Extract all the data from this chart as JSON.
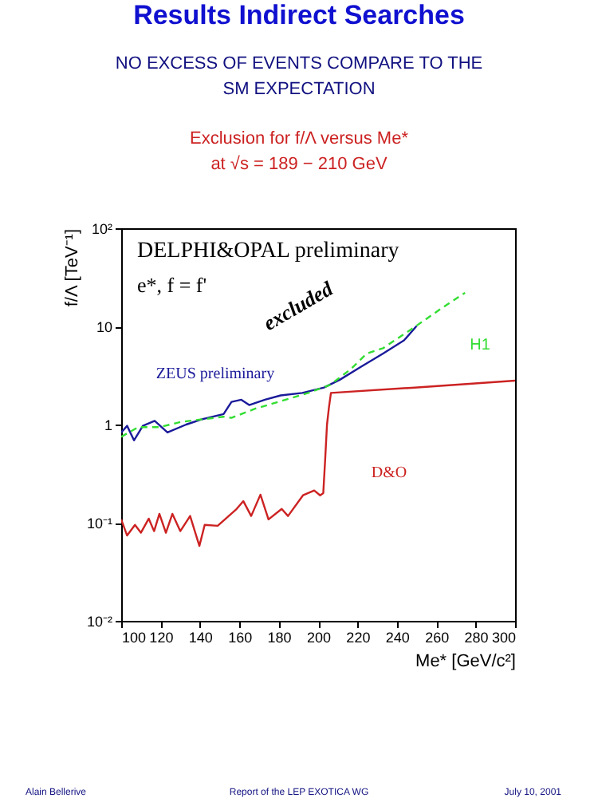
{
  "chart_data": {
    "type": "line",
    "title": "Results Indirect Searches",
    "subtitle": "NO EXCESS OF EVENTS COMPARE TO THE SM EXPECTATION",
    "xlabel": "Me* [GeV/c²]",
    "ylabel": "f/Λ [TeV⁻¹]",
    "xlim": [
      100,
      300
    ],
    "xticks": [
      100,
      120,
      140,
      160,
      180,
      200,
      220,
      240,
      260,
      280,
      300
    ],
    "ylim": [
      0.01,
      100
    ],
    "yticks": [
      {
        "value": 0.01,
        "label": "10⁻²"
      },
      {
        "value": 0.1,
        "label": "10⁻¹"
      },
      1,
      10,
      {
        "value": 100,
        "label": "10²"
      }
    ],
    "log": true,
    "grid": false,
    "series": [
      {
        "color": "#1a1a9a",
        "line_style": "solid",
        "x": [
          100,
          103,
          106.5,
          111,
          117,
          123.5,
          133,
          141,
          152,
          156,
          161,
          165,
          173,
          181,
          192,
          203,
          211,
          222,
          233,
          243.6,
          250
        ],
        "values": [
          0.83,
          0.97,
          0.69,
          0.97,
          1.09,
          0.83,
          1.0,
          1.13,
          1.28,
          1.7,
          1.79,
          1.58,
          1.79,
          1.98,
          2.1,
          2.38,
          2.86,
          3.9,
          5.3,
          7.2,
          10.1
        ]
      },
      {
        "color": "#33dd33",
        "line_style": "dashed",
        "x": [
          100,
          108.6,
          119.4,
          130,
          141,
          152,
          156,
          168,
          181.5,
          195,
          206,
          216.6,
          224.7,
          233,
          249,
          262.5,
          274.6
        ],
        "values": [
          0.75,
          0.94,
          0.94,
          1.06,
          1.13,
          1.2,
          1.17,
          1.45,
          1.74,
          2.1,
          2.53,
          3.67,
          5.3,
          6.0,
          9.85,
          15.2,
          22
        ]
      },
      {
        "color": "#cc2222",
        "line_style": "solid",
        "x": [
          100,
          103,
          107,
          110,
          114,
          116.7,
          119.4,
          122.7,
          126,
          130,
          135,
          139.7,
          142.4,
          149,
          158.6,
          162,
          166,
          170.7,
          174.8,
          181.5,
          184.7,
          192.3,
          198,
          201,
          202.6,
          203.6,
          204.5,
          205.5,
          206.5,
          249,
          300
        ],
        "values": [
          0.108,
          0.074,
          0.095,
          0.079,
          0.11,
          0.082,
          0.123,
          0.079,
          0.123,
          0.082,
          0.117,
          0.058,
          0.095,
          0.093,
          0.138,
          0.166,
          0.117,
          0.193,
          0.108,
          0.138,
          0.117,
          0.19,
          0.213,
          0.19,
          0.2,
          0.45,
          1.0,
          1.5,
          2.1,
          2.38,
          2.8
        ]
      }
    ],
    "annotations": [
      "Exclusion for f/Λ versus Me*",
      "at √s = 189 − 210 GeV",
      "DELPHI&OPAL preliminary",
      "e*, f = f'",
      "Alain Bellerive",
      "Report of the LEP EXOTICA WG",
      "July 10, 2001",
      "excluded",
      "ZEUS preliminary",
      "H1",
      "D&O"
    ]
  }
}
